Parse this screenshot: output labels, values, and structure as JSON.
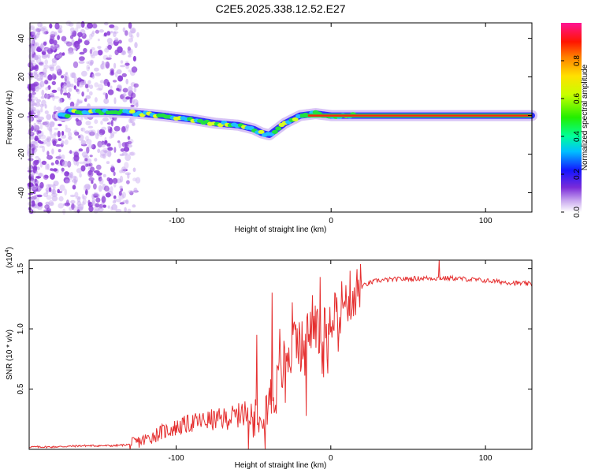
{
  "title": "C2E5.2025.338.12.52.E27",
  "colors": {
    "snr_line": "#e53030",
    "noise": "#8a3bd6",
    "track_core": "#ff2010",
    "track_green": "#20e040",
    "track_cyan": "#20c0ff",
    "track_blue": "#3030ff",
    "frame": "#000000"
  },
  "chart_data": [
    {
      "type": "heatmap",
      "title": "C2E5.2025.338.12.52.E27",
      "xlabel": "Height of straight line (km)",
      "ylabel": "Frequency (Hz)",
      "xlim": [
        -195,
        130
      ],
      "ylim": [
        -50,
        48
      ],
      "xticks": [
        -100,
        0,
        100
      ],
      "xtick_labels": [
        "-100",
        "0",
        "100"
      ],
      "yticks": [
        -40,
        -20,
        0,
        20,
        40
      ],
      "ytick_labels": [
        "-40",
        "-20",
        "0",
        "20",
        "40"
      ],
      "colorbar": {
        "label": "Normalized spectral amplitude",
        "range": [
          0,
          1
        ],
        "ticks": [
          0.0,
          0.2,
          0.4,
          0.6,
          0.8
        ],
        "tick_labels": [
          "0.0",
          "0.2",
          "0.4",
          "0.6",
          "0.8"
        ]
      },
      "ridge": {
        "x": [
          -170,
          -150,
          -130,
          -110,
          -90,
          -75,
          -60,
          -50,
          -45,
          -40,
          -35,
          -30,
          -25,
          -20,
          -10,
          0,
          10,
          30,
          60,
          100,
          130
        ],
        "freq": [
          2,
          2,
          1.5,
          0,
          -2,
          -4,
          -5,
          -7,
          -9,
          -10,
          -7,
          -4,
          -2,
          0,
          1,
          0,
          0,
          0,
          0,
          0,
          0
        ]
      }
    },
    {
      "type": "line",
      "xlabel": "Height of straight line (km)",
      "ylabel": "SNR (10 * v/v)",
      "exponent_label": "(x10",
      "exponent_power": "4",
      "exponent_close": ")",
      "xlim": [
        -195,
        130
      ],
      "ylim": [
        0,
        1.57
      ],
      "xticks": [
        -100,
        0,
        100
      ],
      "xtick_labels": [
        "-100",
        "0",
        "100"
      ],
      "yticks": [
        0.5,
        1.0,
        1.5
      ],
      "ytick_labels": [
        "0.5",
        "1.0",
        "1.5"
      ],
      "series": [
        {
          "name": "SNR",
          "x": [
            -195,
            -180,
            -160,
            -140,
            -130,
            -120,
            -110,
            -100,
            -90,
            -80,
            -70,
            -60,
            -50,
            -45,
            -40,
            -35,
            -30,
            -25,
            -20,
            -15,
            -10,
            -5,
            0,
            5,
            10,
            15,
            20,
            25,
            30,
            40,
            60,
            80,
            100,
            110,
            120,
            130
          ],
          "y": [
            0.02,
            0.02,
            0.03,
            0.03,
            0.04,
            0.08,
            0.14,
            0.18,
            0.22,
            0.24,
            0.25,
            0.28,
            0.32,
            0.36,
            0.4,
            0.5,
            0.72,
            0.85,
            0.85,
            0.95,
            1.02,
            1.08,
            1.12,
            1.18,
            1.24,
            1.3,
            1.35,
            1.38,
            1.4,
            1.41,
            1.42,
            1.42,
            1.4,
            1.39,
            1.38,
            1.37
          ]
        }
      ],
      "spikes": [
        {
          "x": -48,
          "y": 0.95
        },
        {
          "x": -38,
          "y": 1.3
        },
        {
          "x": -33,
          "y": 1.0
        },
        {
          "x": -25,
          "y": 1.22
        },
        {
          "x": -20,
          "y": 0.95
        },
        {
          "x": -12,
          "y": 1.28
        },
        {
          "x": -7,
          "y": 1.43
        },
        {
          "x": 70,
          "y": 1.58
        }
      ]
    }
  ]
}
